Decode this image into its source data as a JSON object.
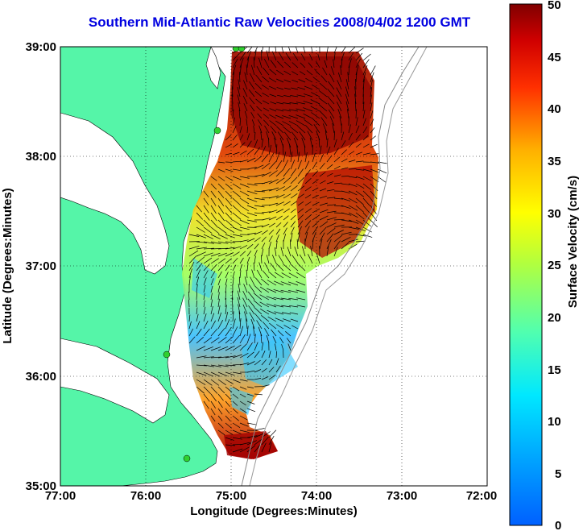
{
  "title": "Southern Mid-Atlantic Raw Velocities 2008/04/02 1200 GMT",
  "map": {
    "xlabel": "Longitude (Degrees:Minutes)",
    "ylabel": "Latitude (Degrees:Minutes)",
    "x_ticks": [
      "77:00",
      "76:00",
      "75:00",
      "74:00",
      "73:00",
      "72:00"
    ],
    "y_ticks": [
      "39:00",
      "38:00",
      "37:00",
      "36:00",
      "35:00"
    ],
    "lon_range": [
      -77,
      -72
    ],
    "lat_range": [
      35,
      39
    ],
    "grid": true,
    "land_color": "#55f5a8",
    "ocean_color": "#ffffff"
  },
  "colorbar": {
    "label": "Surface Velocity (cm/s)",
    "ticks": [
      "50",
      "45",
      "40",
      "35",
      "30",
      "25",
      "20",
      "15",
      "10",
      "5",
      "0"
    ],
    "range": [
      0,
      50
    ],
    "colormap": "jet"
  }
}
